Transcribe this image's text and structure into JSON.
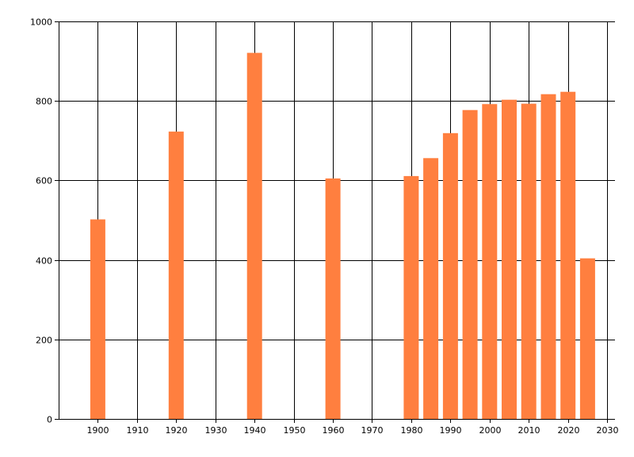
{
  "chart_data": {
    "type": "bar",
    "x": [
      1900,
      1920,
      1940,
      1960,
      1980,
      1985,
      1990,
      1995,
      2000,
      2005,
      2010,
      2015,
      2020,
      2025
    ],
    "values": [
      502,
      723,
      921,
      605,
      611,
      656,
      719,
      777,
      792,
      803,
      793,
      817,
      823,
      404
    ],
    "xlim": [
      1890,
      2032
    ],
    "ylim": [
      0,
      1000
    ],
    "x_ticks": [
      "1900",
      "1910",
      "1920",
      "1930",
      "1940",
      "1950",
      "1960",
      "1970",
      "1980",
      "1990",
      "2000",
      "2010",
      "2020",
      "2030"
    ],
    "y_ticks": [
      "0",
      "200",
      "400",
      "600",
      "800",
      "1000"
    ],
    "bar_color": "#ff7f3f",
    "grid": true,
    "title": "",
    "xlabel": "",
    "ylabel": ""
  }
}
